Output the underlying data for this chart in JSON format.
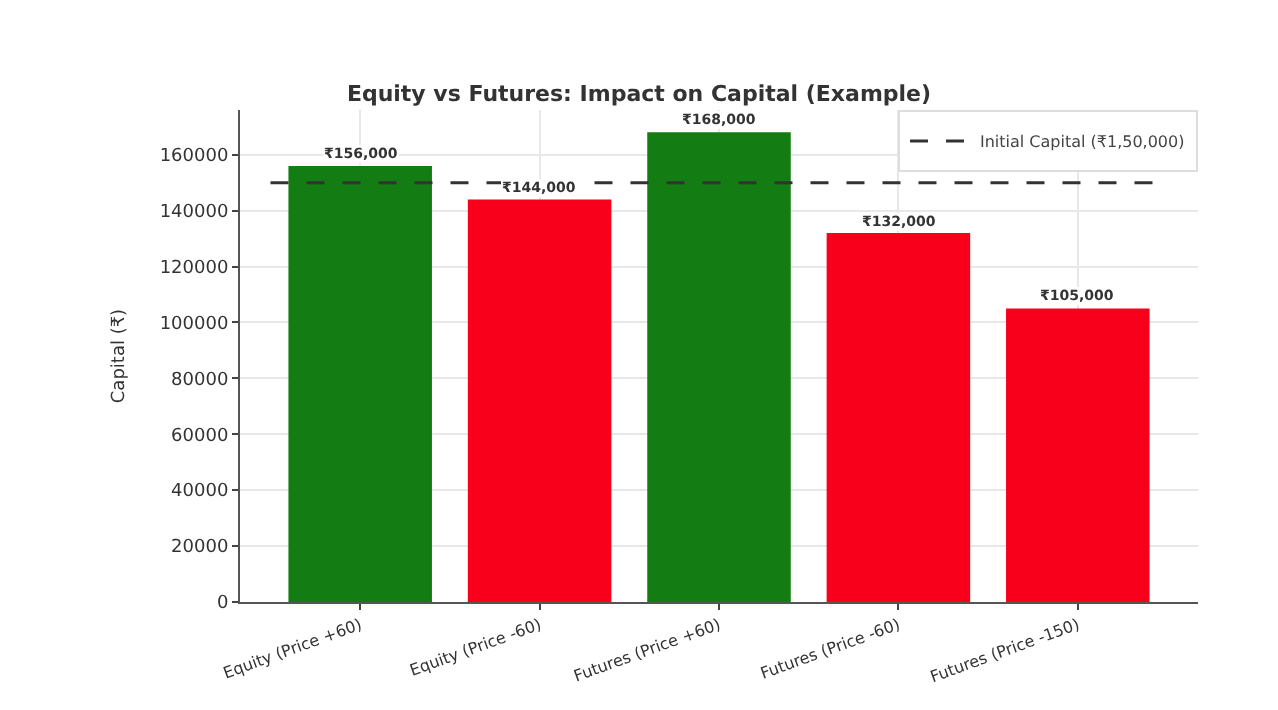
{
  "chart_data": {
    "type": "bar",
    "title": "Equity vs Futures: Impact on Capital (Example)",
    "ylabel": "Capital (₹)",
    "categories": [
      "Equity (Price +60)",
      "Equity (Price -60)",
      "Futures (Price +60)",
      "Futures (Price -60)",
      "Futures (Price -150)"
    ],
    "values": [
      156000,
      144000,
      168000,
      132000,
      105000
    ],
    "colors": [
      "#137d13",
      "#f8001c",
      "#137d13",
      "#f8001c",
      "#f8001c"
    ],
    "value_labels": [
      "₹156,000",
      "₹144,000",
      "₹168,000",
      "₹132,000",
      "₹105,000"
    ],
    "ylim": [
      0,
      176000
    ],
    "yticks": [
      0,
      20000,
      40000,
      60000,
      80000,
      100000,
      120000,
      140000,
      160000
    ],
    "ref_lines": [
      {
        "axis": "y",
        "value": 150000,
        "label": "Initial Capital (₹1,50,000)",
        "color": "#333333",
        "line_style": "dashed"
      }
    ],
    "grid": true,
    "legend": "top right"
  }
}
